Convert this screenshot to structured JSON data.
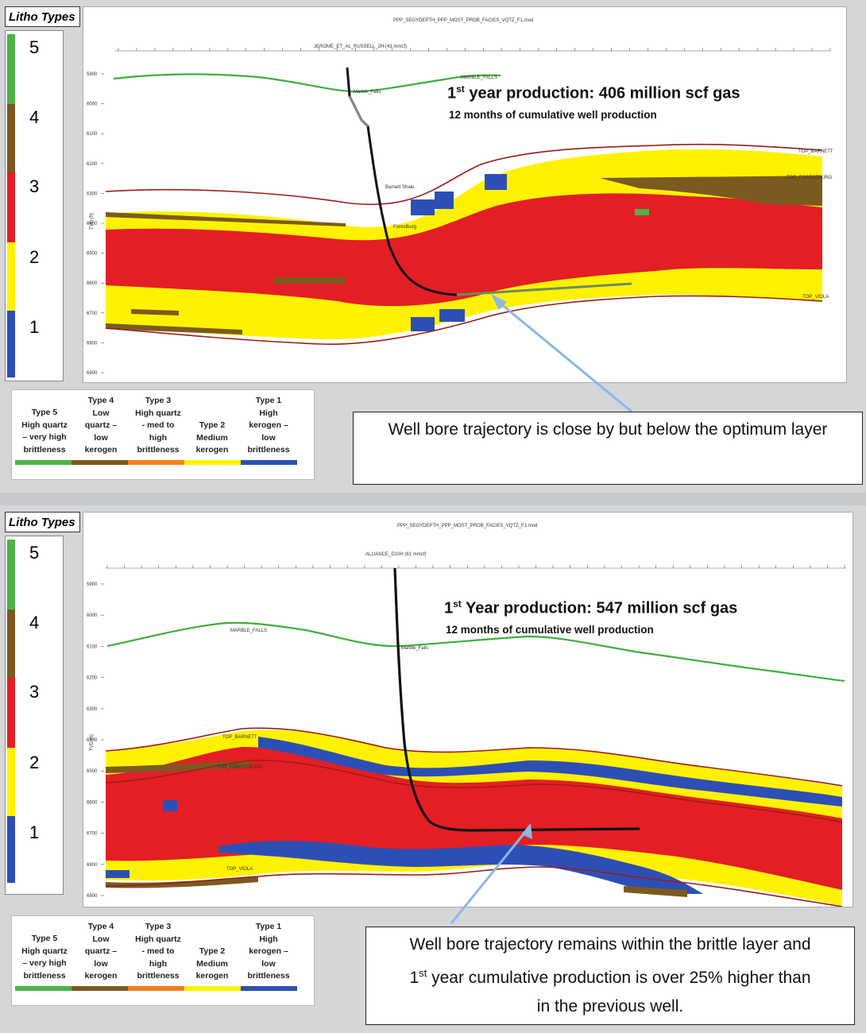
{
  "colors": {
    "type5": "#4db348",
    "type4": "#7b5a1f",
    "type3": "#e31e24",
    "type2": "#fff200",
    "type1": "#2d4fb5",
    "type3_orange": "#f47f20",
    "formation": "#9b1c1c",
    "green_line": "#3fae3a",
    "arrow": "#8ab8e8"
  },
  "top": {
    "litho_title": "Litho Types",
    "scale": [
      "5",
      "4",
      "3",
      "2",
      "1"
    ],
    "file_title": "PPP_SEGYDEPTH_PPP_MOST_PROB_FACIES_VQTZ_F1.mod",
    "well_name": "JEROME_ET_AL_RUSSELL_2H (43 mmcf)",
    "prod_pre": "1",
    "prod_sup": "st",
    "prod_text": " year production:  406  million scf gas",
    "sub": "12 months of cumulative well production",
    "labels": {
      "marble1": "MARBLE_FALLS",
      "marble2": "Marble_Falls",
      "barnett": "Barnett Shale",
      "forestburg": "Forestburg",
      "top_barnett": "TOP_BARNETT",
      "top_forestburg": "TOP_FORESTBURG",
      "top_viola": "TOP_VIOLA"
    },
    "callout": "Well bore trajectory is close by but below the optimum layer"
  },
  "bottom": {
    "litho_title": "Litho Types",
    "scale": [
      "5",
      "4",
      "3",
      "2",
      "1"
    ],
    "file_title": "PPP_SEGYDEPTH_PPP_MOST_PROB_FACIES_VQTZ_F1.mod",
    "well_name": "ALLIANCE_D10H (61 mmcf)",
    "prod_pre": "1",
    "prod_sup": "st",
    "prod_text": " Year production:  547  million scf gas",
    "sub": "12 months of cumulative well production",
    "labels": {
      "marble1": "MARBLE_FALLS",
      "marble2": "Marble_Falls",
      "top_barnett": "TOP_BARNETT",
      "top_forestburg": "TOP_FORESTBURG",
      "top_viola": "TOP_VIOLA"
    },
    "callout_l1": "Well bore trajectory remains within the brittle layer and",
    "callout_sup": "st",
    "callout_l2a": "1",
    "callout_l2b": " year cumulative  production is over 25% higher than",
    "callout_l3": "in the previous well."
  },
  "depth_ticks": [
    "5900",
    "6000",
    "6100",
    "6200",
    "6300",
    "6400",
    "6500",
    "6600",
    "6700",
    "6800",
    "6900"
  ],
  "axis_label": "TVD (ft)",
  "legend": [
    {
      "lines": [
        "Type 5",
        "High quartz",
        "– very high",
        "brittleness"
      ],
      "color": "type5"
    },
    {
      "lines": [
        "Type 4",
        "Low",
        "quartz –",
        "low",
        "kerogen"
      ],
      "color": "type4"
    },
    {
      "lines": [
        "Type 3",
        "High quartz",
        "- med to",
        "high",
        "brittleness"
      ],
      "color": "type3_orange"
    },
    {
      "lines": [
        "Type 2",
        "Medium",
        "kerogen"
      ],
      "color": "type2"
    },
    {
      "lines": [
        "Type 1",
        "High",
        "kerogen –",
        "low",
        "brittleness"
      ],
      "color": "type1"
    }
  ]
}
